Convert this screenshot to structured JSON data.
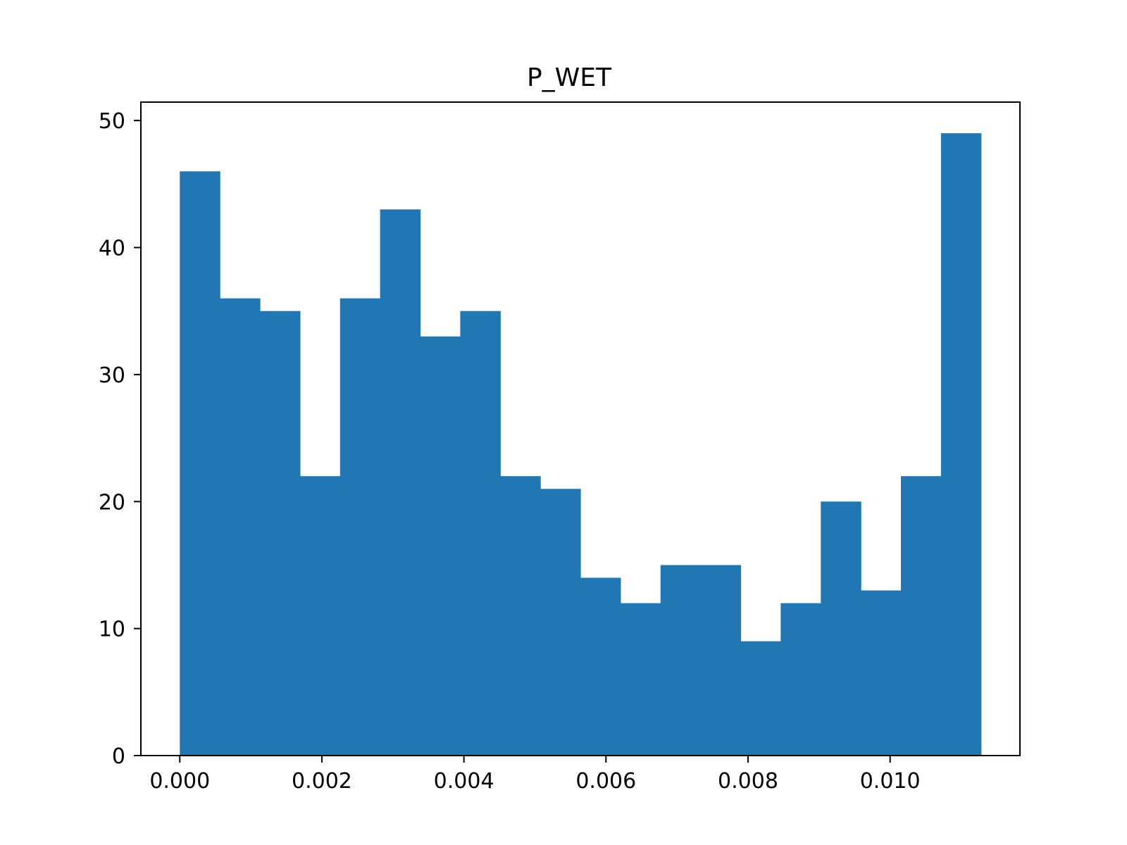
{
  "chart_data": {
    "type": "bar",
    "title": "P_WET",
    "xlabel": "",
    "ylabel": "",
    "bin_edges": [
      0.0,
      0.000564,
      0.001128,
      0.001692,
      0.002256,
      0.00282,
      0.003384,
      0.003948,
      0.004512,
      0.005076,
      0.00564,
      0.006204,
      0.006768,
      0.007332,
      0.007896,
      0.00846,
      0.009024,
      0.009588,
      0.010152,
      0.010716,
      0.01128
    ],
    "values": [
      46,
      36,
      35,
      22,
      36,
      43,
      33,
      35,
      22,
      21,
      14,
      12,
      15,
      15,
      9,
      12,
      20,
      13,
      22,
      49
    ],
    "xlim": [
      -0.000548,
      0.011828
    ],
    "ylim": [
      0,
      51.45
    ],
    "x_ticks": [
      0.0,
      0.002,
      0.004,
      0.006,
      0.008,
      0.01
    ],
    "x_tick_labels": [
      "0.000",
      "0.002",
      "0.004",
      "0.006",
      "0.008",
      "0.010"
    ],
    "y_ticks": [
      0,
      10,
      20,
      30,
      40,
      50
    ],
    "y_tick_labels": [
      "0",
      "10",
      "20",
      "30",
      "40",
      "50"
    ],
    "bar_color": "#2077b4",
    "grid": false,
    "legend": "none"
  }
}
